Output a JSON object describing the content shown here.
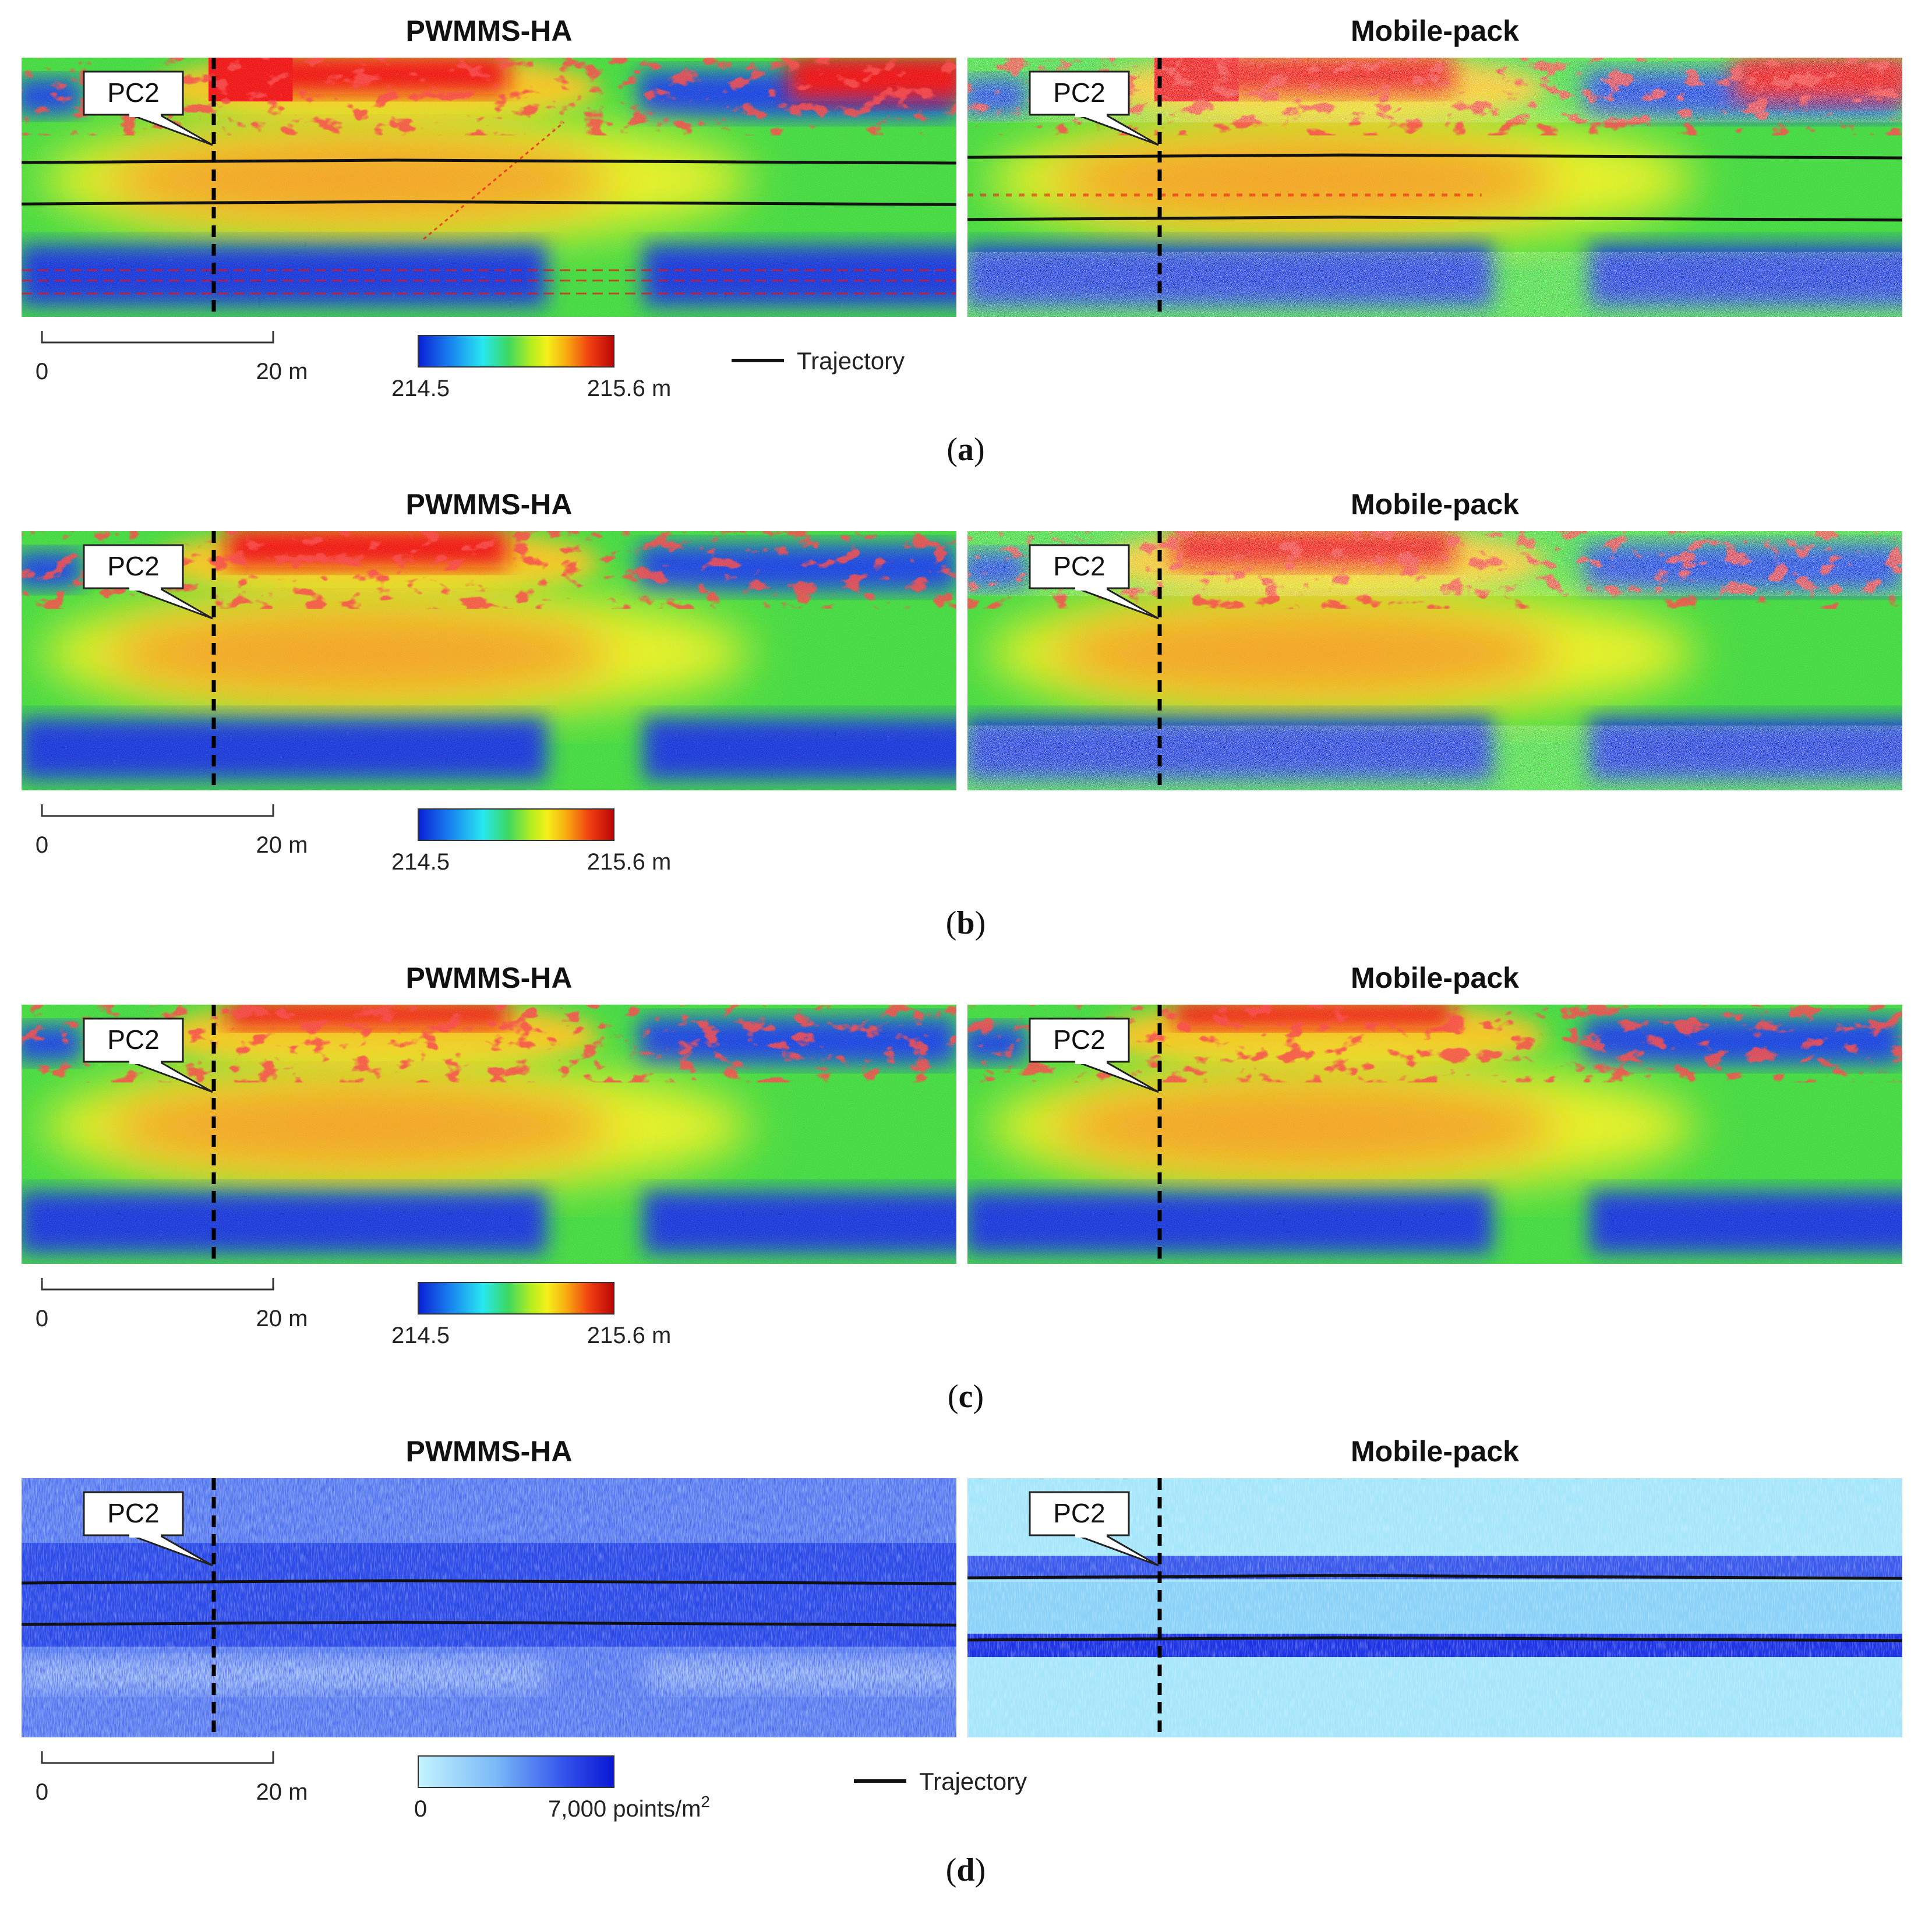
{
  "figure": {
    "panels": [
      {
        "id": "a",
        "caption_letter": "a",
        "left_title": "PWMMS-HA",
        "right_title": "Mobile-pack",
        "marker": "PC2",
        "fill": "elevation",
        "trajectory": true,
        "sparse_right": true,
        "noisy_left": true,
        "scale": {
          "start": "0",
          "end": "20 m"
        },
        "colorbar": {
          "type": "elevation",
          "min_label": "214.5",
          "max_label": "215.6 m"
        },
        "legend": {
          "label": "Trajectory"
        }
      },
      {
        "id": "b",
        "caption_letter": "b",
        "left_title": "PWMMS-HA",
        "right_title": "Mobile-pack",
        "marker": "PC2",
        "fill": "elevation",
        "trajectory": false,
        "sparse_right": true,
        "noisy_left": false,
        "scale": {
          "start": "0",
          "end": "20 m"
        },
        "colorbar": {
          "type": "elevation",
          "min_label": "214.5",
          "max_label": "215.6 m"
        },
        "legend": null
      },
      {
        "id": "c",
        "caption_letter": "c",
        "left_title": "PWMMS-HA",
        "right_title": "Mobile-pack",
        "marker": "PC2",
        "fill": "elevation",
        "trajectory": false,
        "sparse_right": false,
        "noisy_left": false,
        "scale": {
          "start": "0",
          "end": "20 m"
        },
        "colorbar": {
          "type": "elevation",
          "min_label": "214.5",
          "max_label": "215.6 m"
        },
        "legend": null
      },
      {
        "id": "d",
        "caption_letter": "d",
        "left_title": "PWMMS-HA",
        "right_title": "Mobile-pack",
        "marker": "PC2",
        "fill": "density",
        "trajectory": true,
        "sparse_right": false,
        "noisy_left": false,
        "scale": {
          "start": "0",
          "end": "20 m"
        },
        "colorbar": {
          "type": "density",
          "min_label": "0",
          "max_label": "7,000 points/m",
          "max_label_sup": "2"
        },
        "legend": {
          "label": "Trajectory"
        }
      }
    ],
    "colors": {
      "elevation_ramp": [
        "#0a1fd6",
        "#1a8cf0",
        "#27e0f0",
        "#30d860",
        "#8ee81e",
        "#f0f01a",
        "#f8b010",
        "#f04a10",
        "#c80808"
      ],
      "density_ramp": [
        "#bff3ff",
        "#7fc4fa",
        "#3a6cf0",
        "#0a18d8"
      ],
      "trajectory": "#111111",
      "points_red": "#ee1010",
      "ground_green": "#3ed83a",
      "road_orange": "#f2a21e",
      "ditch_blue": "#1634d8"
    }
  }
}
